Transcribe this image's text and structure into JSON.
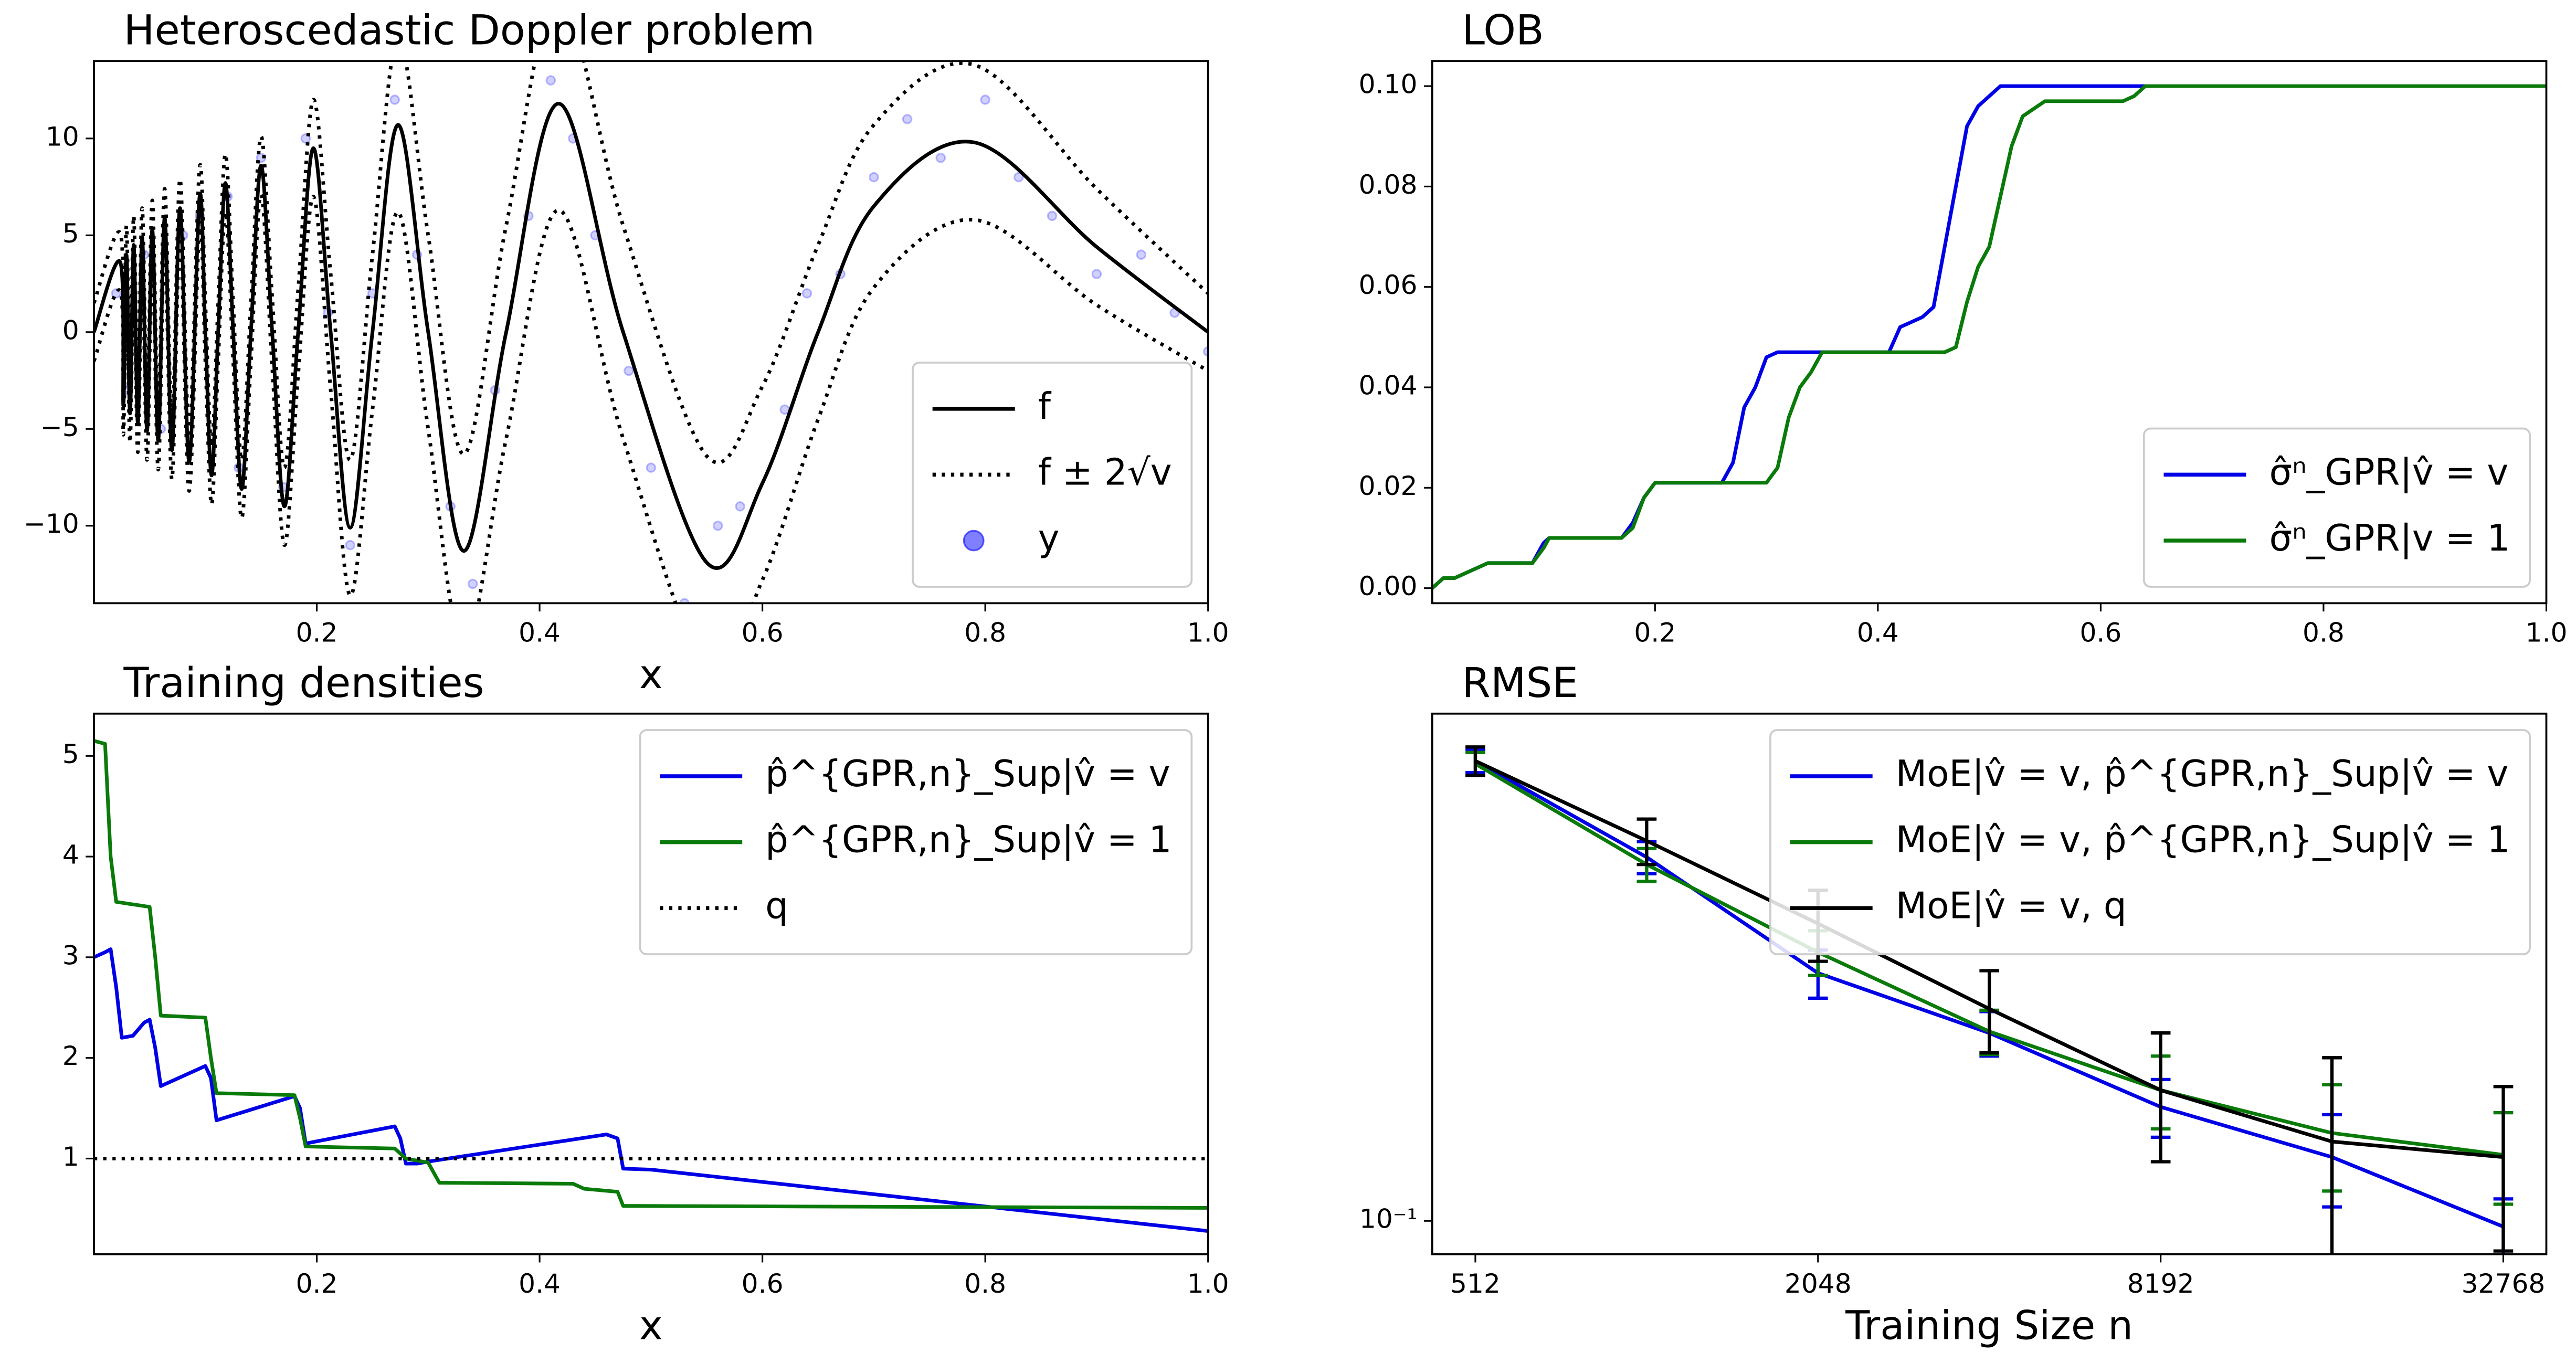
{
  "chart_data": [
    {
      "type": "line",
      "title": "Heteroscedastic Doppler problem",
      "xlabel": "x",
      "curve": "smooth",
      "x": [
        0,
        0.0237,
        0.0264,
        0.0292,
        0.0324,
        0.0357,
        0.0394,
        0.0433,
        0.0477,
        0.0524,
        0.0577,
        0.0635,
        0.07,
        0.0773,
        0.0855,
        0.0948,
        0.1,
        0.1056,
        0.1115,
        0.118,
        0.125,
        0.1326,
        0.1409,
        0.15,
        0.16,
        0.171,
        0.1833,
        0.197,
        0.2125,
        0.23,
        0.25,
        0.273,
        0.3,
        0.332,
        0.37,
        0.417,
        0.475,
        0.55,
        0.6,
        0.65,
        0.7,
        0.79,
        0.9,
        1.0
      ],
      "series": [
        {
          "name": "f",
          "color": "#000000",
          "style": "solid",
          "values": [
            0,
            3.6,
            -3.8,
            4.0,
            -4.2,
            4.5,
            -4.7,
            4.9,
            -5.1,
            5.3,
            -5.6,
            5.9,
            -6.1,
            6.4,
            -6.7,
            7.0,
            0,
            -7.4,
            0,
            7.7,
            0,
            -8.1,
            0,
            8.6,
            0,
            -9.0,
            0,
            9.5,
            0,
            -10.1,
            0,
            10.7,
            0,
            -11.3,
            0,
            11.8,
            0,
            -11.9,
            -7.8,
            0,
            6.5,
            9.8,
            4.4,
            0
          ]
        }
      ],
      "band": {
        "name": "f ± 2√v",
        "color": "#000000",
        "style": "dotted",
        "upper": [
          1.5,
          5.1,
          -2.3,
          5.5,
          -2.7,
          6.0,
          -3.2,
          6.4,
          -3.6,
          6.8,
          -4.1,
          7.4,
          -4.6,
          7.9,
          -5.2,
          8.5,
          1.5,
          -5.9,
          1.5,
          9.2,
          1.5,
          -6.6,
          1.5,
          10.1,
          1.8,
          -7,
          2.2,
          12,
          3,
          -6.6,
          4,
          15.2,
          5,
          -6.3,
          5.5,
          17.3,
          5.5,
          -6.4,
          -2.8,
          4.5,
          10.7,
          13.8,
          7.4,
          2
        ],
        "lower": [
          -1.5,
          2.1,
          -5.3,
          2.5,
          -5.7,
          3.0,
          -6.2,
          3.4,
          -6.6,
          3.8,
          -7.1,
          4.4,
          -7.6,
          4.9,
          -8.2,
          5.5,
          -1.5,
          -8.9,
          -1.5,
          6.2,
          -1.5,
          -9.6,
          -1.5,
          7.1,
          -1.8,
          -11,
          -2.2,
          7,
          -3,
          -13.6,
          -4,
          6.2,
          -5,
          -16.3,
          -5.5,
          6.3,
          -5.5,
          -17.4,
          -12.8,
          -4.5,
          2.3,
          5.8,
          1.4,
          -2
        ]
      },
      "scatter": {
        "name": "y",
        "color": "#0000ff",
        "x": [
          0.02,
          0.03,
          0.045,
          0.06,
          0.08,
          0.095,
          0.12,
          0.13,
          0.15,
          0.17,
          0.19,
          0.21,
          0.23,
          0.25,
          0.27,
          0.29,
          0.32,
          0.34,
          0.36,
          0.39,
          0.41,
          0.43,
          0.45,
          0.48,
          0.5,
          0.53,
          0.56,
          0.58,
          0.62,
          0.64,
          0.67,
          0.7,
          0.73,
          0.76,
          0.8,
          0.83,
          0.86,
          0.9,
          0.94,
          0.97,
          1.0
        ],
        "y": [
          2,
          -3,
          4,
          -5,
          5,
          6,
          7,
          -7,
          9,
          -8,
          10,
          1,
          -11,
          2,
          12,
          4,
          -9,
          -13,
          -3,
          6,
          13,
          10,
          5,
          -2,
          -7,
          -14,
          -10,
          -9,
          -4,
          2,
          3,
          8,
          11,
          9,
          12,
          8,
          6,
          3,
          4,
          1,
          -1
        ]
      },
      "xlim": [
        0,
        1
      ],
      "ylim": [
        -14,
        14
      ],
      "xticks": [
        0.2,
        0.4,
        0.6,
        0.8,
        {
          "value": 1,
          "label": "1.0"
        }
      ],
      "yticks": [
        {
          "value": -10,
          "label": "−10"
        },
        {
          "value": -5,
          "label": "−5"
        },
        0,
        5,
        10
      ],
      "legend": "lower right"
    },
    {
      "type": "line",
      "title": "LOB",
      "x": [
        0,
        0.01,
        0.02,
        0.04,
        0.05,
        0.09,
        0.1,
        0.105,
        0.17,
        0.18,
        0.19,
        0.2,
        0.22,
        0.26,
        0.27,
        0.28,
        0.29,
        0.3,
        0.31,
        0.32,
        0.33,
        0.34,
        0.35,
        0.41,
        0.42,
        0.44,
        0.45,
        0.46,
        0.47,
        0.48,
        0.49,
        0.5,
        0.51,
        0.52,
        0.53,
        0.55,
        0.56,
        0.62,
        0.63,
        0.64,
        0.65,
        1.0
      ],
      "series": [
        {
          "name": "σ̂ⁿ_GPR|v̂ = v",
          "color": "#0000e6",
          "style": "solid",
          "values": [
            0,
            0.002,
            0.002,
            0.004,
            0.005,
            0.005,
            0.009,
            0.01,
            0.01,
            0.013,
            0.018,
            0.021,
            0.021,
            0.021,
            0.025,
            0.036,
            0.04,
            0.046,
            0.047,
            0.047,
            0.047,
            0.047,
            0.047,
            0.047,
            0.052,
            0.054,
            0.056,
            0.068,
            0.08,
            0.092,
            0.096,
            0.098,
            0.1,
            0.1,
            0.1,
            0.1,
            0.1,
            0.1,
            0.1,
            0.1,
            null,
            null
          ]
        },
        {
          "name": "σ̂ⁿ_GPR|v = 1",
          "color": "#0a7a0a",
          "style": "solid",
          "values": [
            0,
            0.002,
            0.002,
            0.004,
            0.005,
            0.005,
            0.008,
            0.01,
            0.01,
            0.012,
            0.018,
            0.021,
            0.021,
            0.021,
            0.021,
            0.021,
            0.021,
            0.021,
            0.024,
            0.034,
            0.04,
            0.043,
            0.047,
            0.047,
            0.047,
            0.047,
            0.047,
            0.047,
            0.048,
            0.057,
            0.064,
            0.068,
            0.078,
            0.088,
            0.094,
            0.097,
            0.097,
            0.097,
            0.098,
            0.1,
            0.1,
            0.1
          ]
        }
      ],
      "xlim": [
        0,
        1
      ],
      "ylim": [
        -0.003,
        0.105
      ],
      "xticks": [
        0.2,
        0.4,
        0.6,
        0.8,
        {
          "value": 1,
          "label": "1.0"
        }
      ],
      "yticks": [
        {
          "value": 0,
          "label": "0.00"
        },
        {
          "value": 0.02,
          "label": "0.02"
        },
        {
          "value": 0.04,
          "label": "0.04"
        },
        {
          "value": 0.06,
          "label": "0.06"
        },
        {
          "value": 0.08,
          "label": "0.08"
        },
        {
          "value": 0.1,
          "label": "0.10"
        }
      ],
      "legend": "lower right"
    },
    {
      "type": "line",
      "title": "Training densities",
      "xlabel": "x",
      "series": [
        {
          "name": "p̂^{GPR,n}_Sup|v̂ = v",
          "color": "#0000e6",
          "style": "solid",
          "x": [
            0,
            0.01,
            0.015,
            0.02,
            0.025,
            0.035,
            0.045,
            0.05,
            0.055,
            0.06,
            0.1,
            0.105,
            0.11,
            0.18,
            0.185,
            0.19,
            0.27,
            0.275,
            0.28,
            0.29,
            0.3,
            0.46,
            0.47,
            0.475,
            0.5,
            1.0
          ],
          "values": [
            3.0,
            3.05,
            3.08,
            2.7,
            2.2,
            2.22,
            2.35,
            2.38,
            2.1,
            1.72,
            1.92,
            1.8,
            1.38,
            1.62,
            1.5,
            1.15,
            1.32,
            1.2,
            0.95,
            0.95,
            0.97,
            1.24,
            1.2,
            0.9,
            0.89,
            0.28
          ]
        },
        {
          "name": "p̂^{GPR,n}_Sup|v̂ = 1",
          "color": "#0a7a0a",
          "style": "solid",
          "x": [
            0,
            0.01,
            0.015,
            0.02,
            0.05,
            0.055,
            0.06,
            0.1,
            0.105,
            0.11,
            0.18,
            0.185,
            0.19,
            0.27,
            0.28,
            0.3,
            0.31,
            0.43,
            0.44,
            0.47,
            0.475,
            1.0
          ],
          "values": [
            5.15,
            5.12,
            4.0,
            3.55,
            3.5,
            3.0,
            2.42,
            2.4,
            2.0,
            1.65,
            1.63,
            1.4,
            1.12,
            1.1,
            1.0,
            0.96,
            0.76,
            0.75,
            0.7,
            0.67,
            0.53,
            0.51
          ]
        },
        {
          "name": "q",
          "color": "#000000",
          "style": "dotted",
          "x": [
            0,
            1.0
          ],
          "values": [
            1,
            1
          ]
        }
      ],
      "xlim": [
        0,
        1
      ],
      "ylim": [
        0.05,
        5.42
      ],
      "xticks": [
        0.2,
        0.4,
        0.6,
        0.8,
        {
          "value": 1,
          "label": "1.0"
        }
      ],
      "yticks": [
        1,
        2,
        3,
        4,
        5
      ],
      "legend": "upper right"
    },
    {
      "type": "line",
      "title": "RMSE",
      "xlabel": "Training Size n",
      "xscale": "log",
      "yscale": "log",
      "x": [
        512,
        1024,
        2048,
        4096,
        8192,
        16384,
        32768
      ],
      "series": [
        {
          "name": "MoE|v̂ = v, p̂^{GPR,n}_Sup|v̂ = v",
          "color": "#0000e6",
          "style": "solid",
          "values": [
            0.5,
            0.357,
            0.238,
            0.193,
            0.149,
            0.125,
            0.098
          ],
          "errors": [
            0.02,
            0.02,
            0.02,
            0.015,
            0.015,
            0.02,
            0.01
          ]
        },
        {
          "name": "MoE|v̂ = v, p̂^{GPR,n}_Sup|v̂ = 1",
          "color": "#0a7a0a",
          "style": "solid",
          "values": [
            0.495,
            0.348,
            0.256,
            0.194,
            0.158,
            0.136,
            0.126
          ],
          "errors": [
            0.02,
            0.02,
            0.02,
            0.015,
            0.02,
            0.025,
            0.02
          ]
        },
        {
          "name": "MoE|v̂ = v, q",
          "color": "#000000",
          "style": "solid",
          "values": [
            0.5,
            0.378,
            0.283,
            0.21,
            0.158,
            0.132,
            0.125
          ],
          "errors": [
            0.025,
            0.03,
            0.035,
            0.03,
            0.035,
            0.045,
            0.035
          ]
        }
      ],
      "xlim": [
        430,
        39000
      ],
      "ylim": [
        0.089,
        0.59
      ],
      "xticks": [
        512,
        2048,
        8192,
        32768
      ],
      "yticks": [
        {
          "value": 0.1,
          "label": "10⁻¹"
        }
      ],
      "legend": "upper right"
    }
  ]
}
